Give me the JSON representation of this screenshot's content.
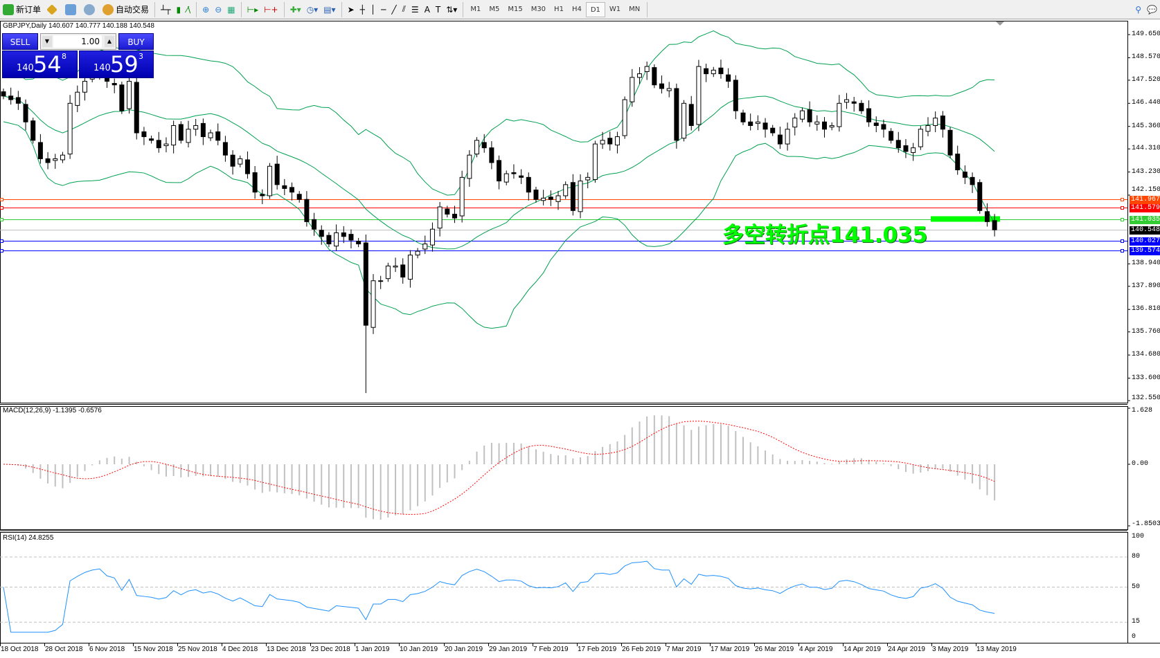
{
  "toolbar": {
    "new_order": "新订单",
    "auto_trading": "自动交易",
    "timeframes": [
      "M1",
      "M5",
      "M15",
      "M30",
      "H1",
      "H4",
      "D1",
      "W1",
      "MN"
    ],
    "active_timeframe": "D1"
  },
  "chart": {
    "symbol_info": "GBPJPY,Daily  140.607 140.777 140.188 140.548",
    "trade_panel": {
      "sell_label": "SELL",
      "buy_label": "BUY",
      "lot": "1.00",
      "sell_price": {
        "small": "140",
        "big": "54",
        "pip": "8"
      },
      "buy_price": {
        "small": "140",
        "big": "59",
        "pip": "3"
      }
    },
    "annotation": "多空转折点141.035",
    "price_ticks": [
      "149.650",
      "148.570",
      "147.520",
      "146.440",
      "145.360",
      "144.310",
      "143.230",
      "142.150",
      "138.940",
      "137.890",
      "136.810",
      "135.760",
      "134.680",
      "133.600",
      "132.550"
    ],
    "price_range": [
      132.55,
      149.65
    ],
    "levels": [
      {
        "value": "141.967",
        "color": "#ff4500"
      },
      {
        "value": "141.579",
        "color": "#ff0000"
      },
      {
        "value": "141.035",
        "color": "#32cd32"
      },
      {
        "value": "140.548",
        "color": "#000000"
      },
      {
        "value": "140.027",
        "color": "#0000ff"
      },
      {
        "value": "139.574",
        "color": "#0000ff"
      }
    ],
    "closes": [
      146.78,
      146.61,
      146.44,
      145.57,
      144.71,
      143.85,
      143.67,
      143.85,
      144.02,
      146.44,
      146.96,
      147.47,
      147.82,
      147.99,
      147.47,
      147.3,
      146.09,
      147.47,
      145.06,
      144.88,
      144.71,
      144.36,
      144.54,
      145.4,
      144.71,
      145.23,
      145.4,
      144.88,
      145.06,
      144.71,
      144.02,
      143.5,
      143.85,
      143.15,
      142.29,
      142.12,
      143.5,
      142.64,
      142.46,
      142.29,
      141.95,
      140.91,
      140.56,
      140.22,
      139.87,
      140.39,
      140.22,
      140.05,
      139.87,
      136.07,
      138.15,
      138.15,
      138.84,
      138.84,
      138.32,
      139.35,
      139.53,
      139.87,
      140.56,
      141.6,
      141.26,
      141.08,
      142.98,
      144.02,
      144.71,
      144.36,
      143.67,
      142.81,
      143.15,
      143.15,
      142.98,
      142.29,
      141.95,
      142.01,
      141.95,
      142.12,
      142.64,
      141.43,
      142.81,
      142.98,
      144.54,
      144.71,
      144.54,
      144.88,
      146.61,
      147.65,
      147.82,
      148.16,
      147.3,
      147.13,
      147.13,
      144.71,
      146.44,
      145.4,
      148.16,
      147.82,
      147.99,
      147.82,
      147.47,
      146.09,
      145.57,
      145.4,
      145.57,
      145.23,
      145.06,
      144.54,
      145.23,
      145.75,
      146.09,
      145.57,
      145.57,
      145.23,
      145.4,
      146.44,
      146.61,
      146.44,
      146.09,
      145.57,
      145.4,
      145.23,
      144.71,
      144.36,
      144.19,
      144.36,
      145.23,
      145.4,
      145.75,
      145.23,
      144.02,
      143.33,
      142.98,
      142.64,
      141.43,
      140.91,
      140.53
    ],
    "bb_color": "#00a050"
  },
  "macd": {
    "label": "MACD(12,26,9) -1.1395 -0.6576",
    "ticks": [
      "1.628",
      "0.00",
      "-1.8503"
    ],
    "histogram_color": "#c0c0c0",
    "signal_color": "#ff0000"
  },
  "rsi": {
    "label": "RSI(14) 24.8255",
    "ticks": [
      "100",
      "80",
      "50",
      "15",
      "0"
    ],
    "line_color": "#1e90ff"
  },
  "dates": [
    "18 Oct 2018",
    "28 Oct 2018",
    "6 Nov 2018",
    "15 Nov 2018",
    "25 Nov 2018",
    "4 Dec 2018",
    "13 Dec 2018",
    "23 Dec 2018",
    "1 Jan 2019",
    "10 Jan 2019",
    "20 Jan 2019",
    "29 Jan 2019",
    "7 Feb 2019",
    "17 Feb 2019",
    "26 Feb 2019",
    "7 Mar 2019",
    "17 Mar 2019",
    "26 Mar 2019",
    "4 Apr 2019",
    "14 Apr 2019",
    "24 Apr 2019",
    "3 May 2019",
    "13 May 2019"
  ]
}
